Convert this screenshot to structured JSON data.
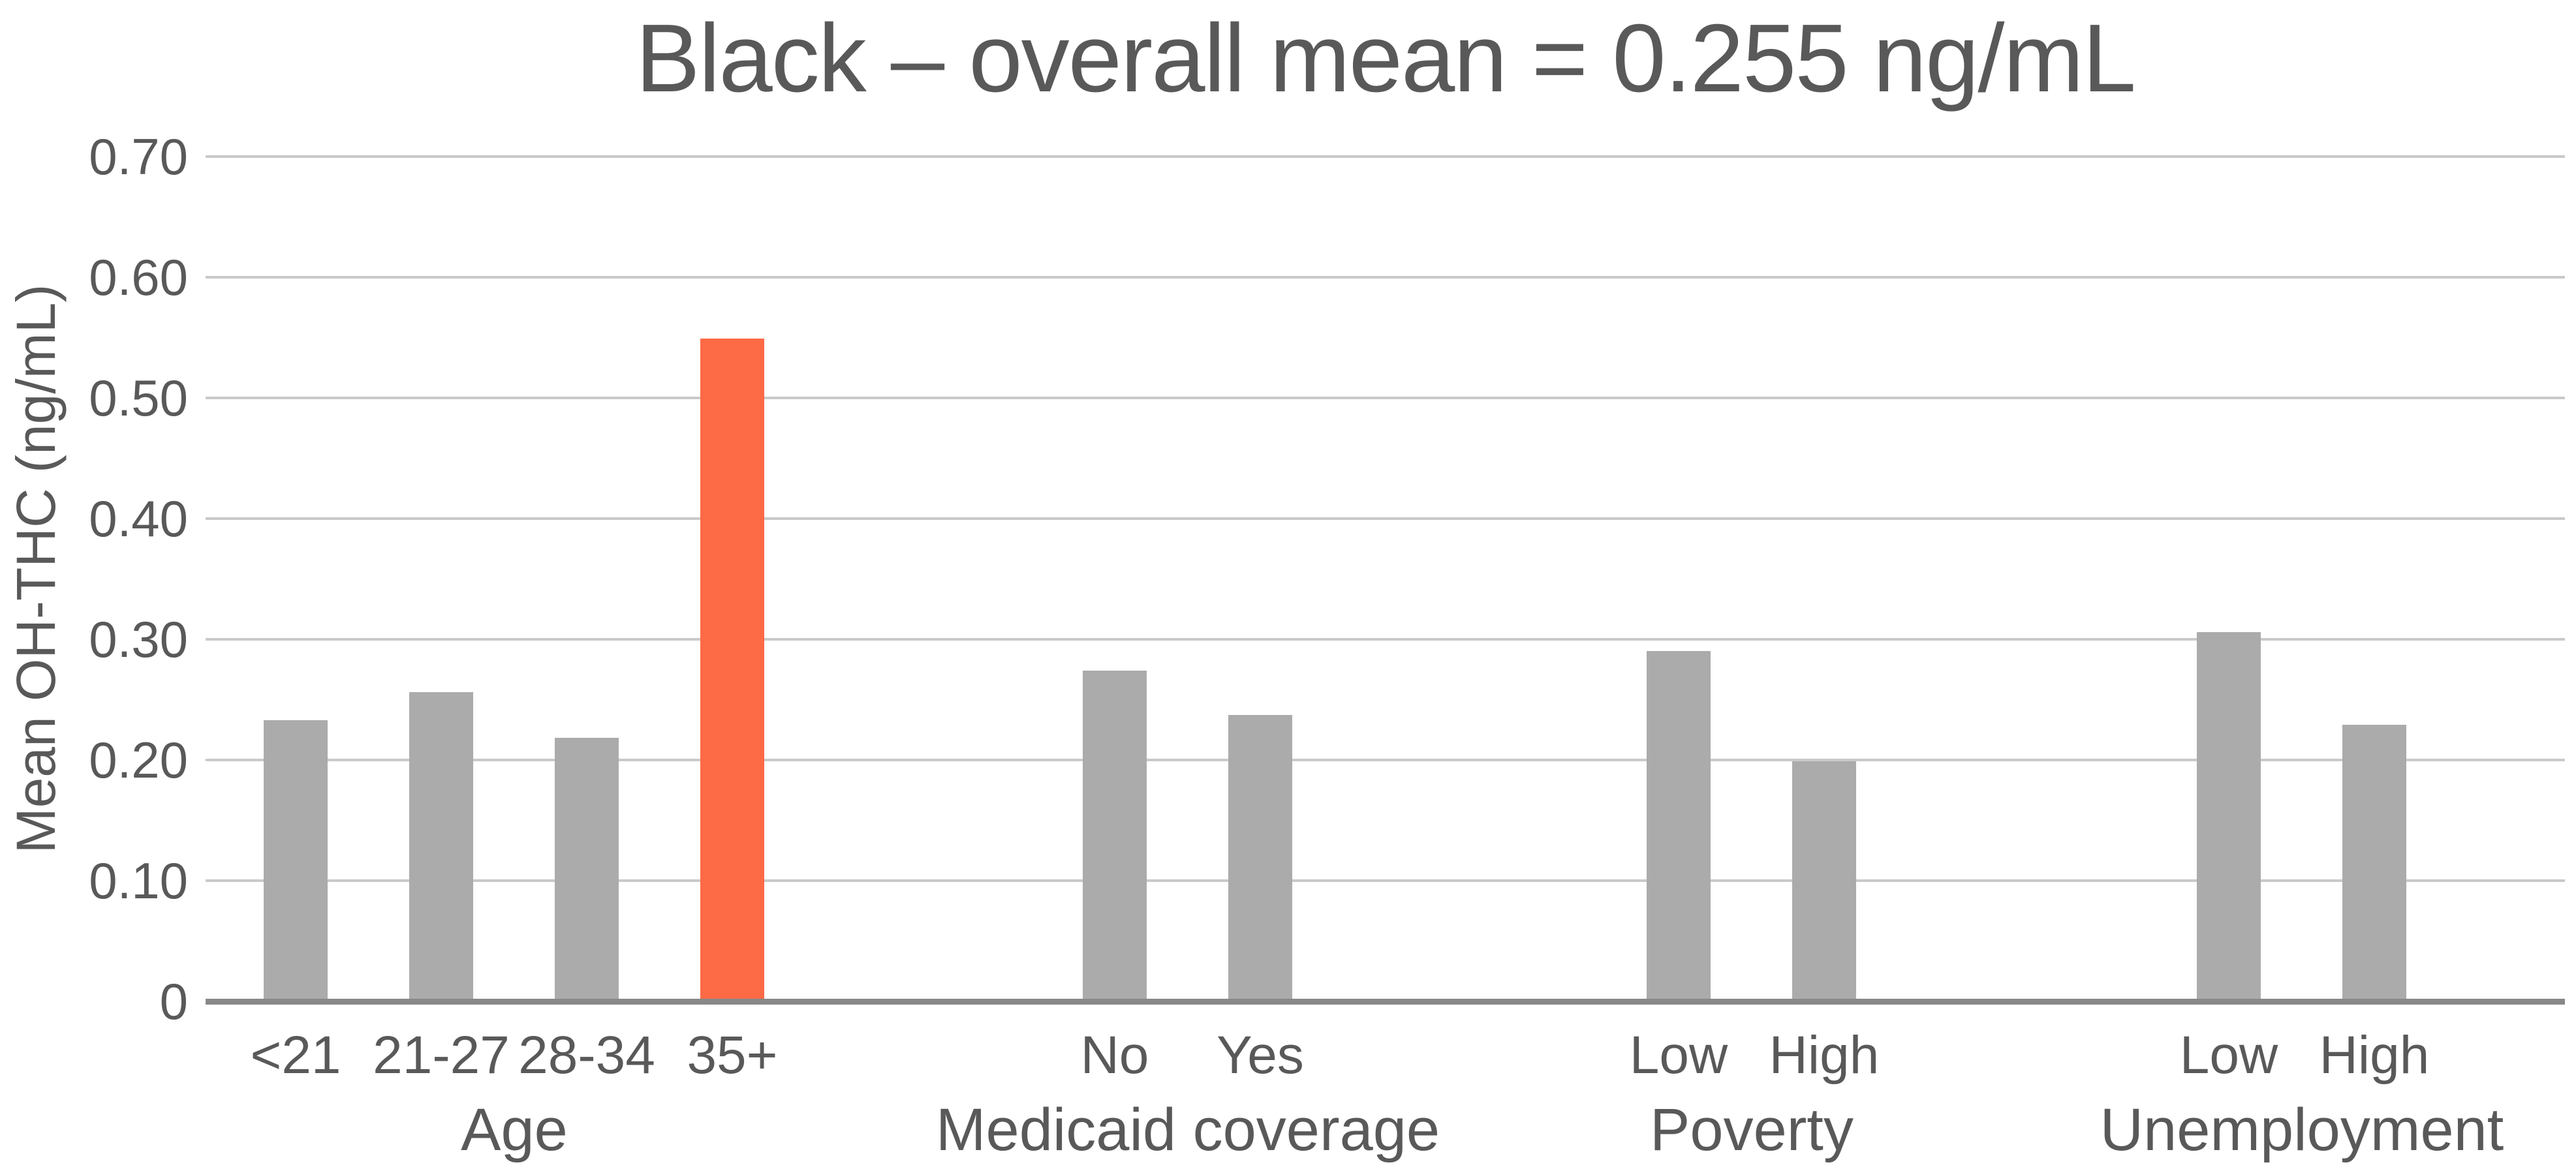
{
  "title": "Black – overall mean = 0.255 ng/mL",
  "y_axis": {
    "label": "Mean OH-THC (ng/mL)",
    "tick_labels": [
      "0",
      "0.10",
      "0.20",
      "0.30",
      "0.40",
      "0.50",
      "0.60",
      "0.70"
    ]
  },
  "chart_data": {
    "type": "bar",
    "title": "Black – overall mean = 0.255 ng/mL",
    "xlabel": "",
    "ylabel": "Mean OH-THC (ng/mL)",
    "ylim": [
      0,
      0.75
    ],
    "yticks": [
      0,
      0.1,
      0.2,
      0.3,
      0.4,
      0.5,
      0.6,
      0.7
    ],
    "ytick_labels": [
      "0",
      "0.10",
      "0.20",
      "0.30",
      "0.40",
      "0.50",
      "0.60",
      "0.70"
    ],
    "grid": true,
    "legend_position": "none",
    "overall_mean_ng_ml": 0.255,
    "highlight_note": "35+ age bar shown in orange; all other bars gray",
    "groups": [
      {
        "label": "Age",
        "categories": [
          "<21",
          "21-27",
          "28-34",
          "35+"
        ],
        "values": [
          0.231,
          0.254,
          0.216,
          0.547
        ],
        "highlight_index": 3
      },
      {
        "label": "Medicaid coverage",
        "categories": [
          "No",
          "Yes"
        ],
        "values": [
          0.272,
          0.235
        ],
        "highlight_index": -1
      },
      {
        "label": "Poverty",
        "categories": [
          "Low",
          "High"
        ],
        "values": [
          0.288,
          0.197
        ],
        "highlight_index": -1
      },
      {
        "label": "Unemployment",
        "categories": [
          "Low",
          "High"
        ],
        "values": [
          0.304,
          0.227
        ],
        "highlight_index": -1
      }
    ]
  },
  "colors": {
    "bar": "#ababab",
    "highlight": "#fc6a46",
    "text": "#595959",
    "gridline": "#c9c9c9",
    "axis": "#888888",
    "background": "#ffffff"
  }
}
